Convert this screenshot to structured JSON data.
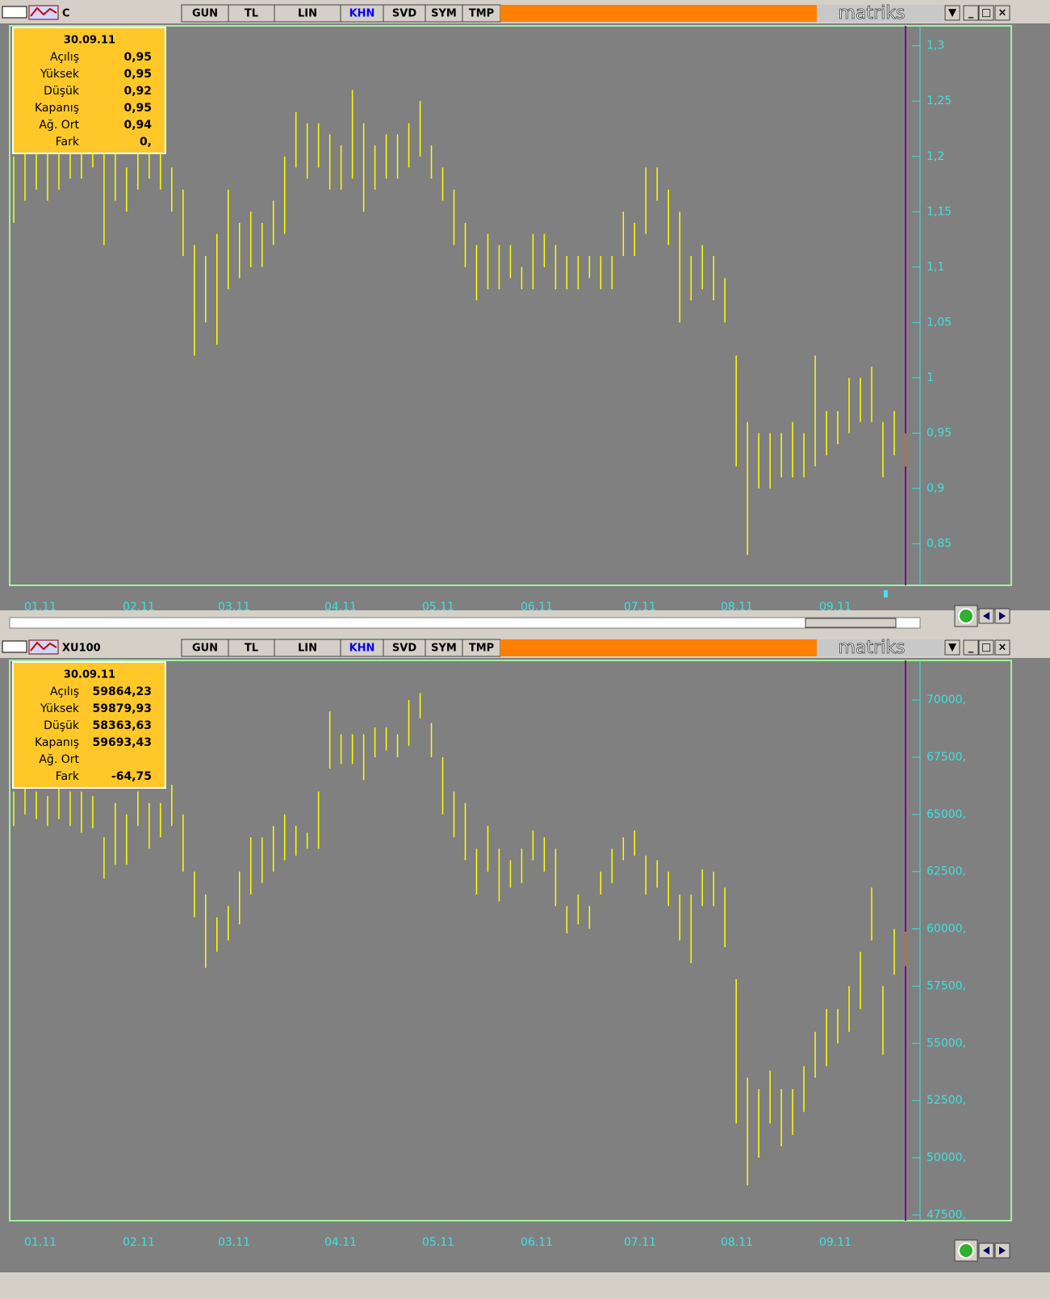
{
  "panels": [
    {
      "symbol": "C",
      "buttons": [
        "GUN",
        "TL",
        "LIN",
        "KHN",
        "SVD",
        "SYM",
        "TMP"
      ],
      "active_button": 3,
      "logo": "matriks",
      "info": {
        "date": "30.09.11",
        "rows": [
          {
            "label": "Açılış",
            "value": "0,95"
          },
          {
            "label": "Yüksek",
            "value": "0,95"
          },
          {
            "label": "Düşük",
            "value": "0,92"
          },
          {
            "label": "Kapanış",
            "value": "0,95"
          },
          {
            "label": "Ağ. Ort",
            "value": "0,94"
          },
          {
            "label": "Fark",
            "value": "0,"
          }
        ]
      },
      "chart": {
        "type": "ohlc",
        "color": "#ffff00",
        "last_color": "#ff8000",
        "ylim": [
          0.8125,
          1.318
        ],
        "yticks": [
          {
            "value": 1.3,
            "label": "1,3"
          },
          {
            "value": 1.25,
            "label": "1,25"
          },
          {
            "value": 1.2,
            "label": "1,2"
          },
          {
            "value": 1.15,
            "label": "1,15"
          },
          {
            "value": 1.1,
            "label": "1,1"
          },
          {
            "value": 1.05,
            "label": "1,05"
          },
          1,
          {
            "value": 0.95,
            "label": "0,95"
          },
          {
            "value": 0.9,
            "label": "0,9"
          },
          {
            "value": 0.85,
            "label": "0,85"
          }
        ],
        "x_labels": [
          "01.11",
          "02.11",
          "03.11",
          "04.11",
          "05.11",
          "06.11",
          "07.11",
          "08.11",
          "09.11"
        ],
        "high": [
          1.2,
          1.21,
          1.22,
          1.21,
          1.22,
          1.21,
          1.22,
          1.23,
          1.22,
          1.21,
          1.19,
          1.22,
          1.21,
          1.22,
          1.19,
          1.17,
          1.12,
          1.11,
          1.13,
          1.17,
          1.14,
          1.15,
          1.14,
          1.16,
          1.2,
          1.24,
          1.23,
          1.23,
          1.22,
          1.21,
          1.26,
          1.23,
          1.21,
          1.22,
          1.22,
          1.23,
          1.25,
          1.21,
          1.19,
          1.17,
          1.14,
          1.12,
          1.13,
          1.12,
          1.12,
          1.1,
          1.13,
          1.13,
          1.12,
          1.11,
          1.11,
          1.11,
          1.11,
          1.11,
          1.15,
          1.14,
          1.19,
          1.19,
          1.17,
          1.15,
          1.11,
          1.12,
          1.11,
          1.09,
          1.02,
          0.96,
          0.95,
          0.95,
          0.95,
          0.96,
          0.95,
          1.02,
          0.97,
          0.97,
          1.0,
          1.0,
          1.01,
          0.96,
          0.97,
          0.95
        ],
        "low": [
          1.14,
          1.16,
          1.17,
          1.16,
          1.17,
          1.18,
          1.18,
          1.19,
          1.12,
          1.16,
          1.15,
          1.17,
          1.18,
          1.17,
          1.15,
          1.11,
          1.02,
          1.05,
          1.03,
          1.08,
          1.09,
          1.1,
          1.1,
          1.12,
          1.13,
          1.19,
          1.18,
          1.19,
          1.17,
          1.17,
          1.18,
          1.15,
          1.17,
          1.18,
          1.18,
          1.19,
          1.2,
          1.18,
          1.16,
          1.12,
          1.1,
          1.07,
          1.08,
          1.08,
          1.09,
          1.08,
          1.08,
          1.1,
          1.08,
          1.08,
          1.08,
          1.09,
          1.08,
          1.08,
          1.11,
          1.11,
          1.13,
          1.16,
          1.12,
          1.05,
          1.07,
          1.08,
          1.07,
          1.05,
          0.92,
          0.84,
          0.9,
          0.9,
          0.91,
          0.91,
          0.91,
          0.92,
          0.93,
          0.94,
          0.95,
          0.96,
          0.96,
          0.91,
          0.93,
          0.92
        ]
      }
    },
    {
      "symbol": "XU100",
      "buttons": [
        "GUN",
        "TL",
        "LIN",
        "KHN",
        "SVD",
        "SYM",
        "TMP"
      ],
      "active_button": 3,
      "logo": "matriks",
      "info": {
        "date": "30.09.11",
        "rows": [
          {
            "label": "Açılış",
            "value": "59864,23"
          },
          {
            "label": "Yüksek",
            "value": "59879,93"
          },
          {
            "label": "Düşük",
            "value": "58363,63"
          },
          {
            "label": "Kapanış",
            "value": "59693,43"
          },
          {
            "label": "Ağ. Ort"
          },
          {
            "label": "Fark",
            "value": "-64,75"
          }
        ]
      },
      "chart": {
        "type": "ohlc",
        "color": "#ffff00",
        "last_color": "#ff8000",
        "ylim": [
          47250,
          71730
        ],
        "yticks": [
          {
            "value": 70000,
            "label": "70000,"
          },
          {
            "value": 67500,
            "label": "67500,"
          },
          {
            "value": 65000,
            "label": "65000,"
          },
          {
            "value": 62500,
            "label": "62500,"
          },
          {
            "value": 60000,
            "label": "60000,"
          },
          {
            "value": 57500,
            "label": "57500,"
          },
          {
            "value": 55000,
            "label": "55000,"
          },
          {
            "value": 52500,
            "label": "52500,"
          },
          {
            "value": 50000,
            "label": "50000,"
          },
          {
            "value": 47500,
            "label": "47500,"
          }
        ],
        "x_labels": [
          "01.11",
          "02.11",
          "03.11",
          "04.11",
          "05.11",
          "06.11",
          "07.11",
          "08.11",
          "09.11"
        ],
        "high": [
          66000,
          66500,
          66000,
          65800,
          66200,
          66000,
          66000,
          65800,
          64000,
          65500,
          65000,
          66000,
          65500,
          65500,
          66300,
          65000,
          62500,
          61500,
          60500,
          61000,
          62500,
          64000,
          64000,
          64500,
          65000,
          64500,
          64200,
          66000,
          69500,
          68500,
          68500,
          68500,
          68800,
          68800,
          68500,
          70000,
          70300,
          69000,
          67500,
          66000,
          65500,
          63500,
          64500,
          63500,
          63000,
          63500,
          64300,
          64000,
          63500,
          61000,
          61500,
          61000,
          62500,
          63500,
          64000,
          64300,
          63200,
          63000,
          62500,
          61500,
          61500,
          62600,
          62500,
          61800,
          57800,
          53500,
          53000,
          53800,
          53000,
          53000,
          54000,
          55500,
          56500,
          56500,
          57500,
          59000,
          61800,
          57500,
          60000,
          59880
        ],
        "low": [
          64500,
          65000,
          64800,
          64500,
          64800,
          64500,
          64200,
          64400,
          62200,
          62800,
          62800,
          64500,
          63500,
          64000,
          64500,
          62500,
          60500,
          58300,
          59000,
          59500,
          60200,
          61500,
          62000,
          62500,
          63000,
          63200,
          63500,
          63500,
          67000,
          67200,
          67200,
          66500,
          67500,
          67800,
          67500,
          68000,
          69200,
          67500,
          65000,
          64000,
          63000,
          61500,
          62500,
          61200,
          61800,
          62000,
          63000,
          62500,
          61000,
          59800,
          60200,
          60000,
          61500,
          62000,
          63000,
          63200,
          61500,
          61800,
          61000,
          59500,
          58500,
          61000,
          61000,
          59200,
          51500,
          48800,
          50000,
          51500,
          50500,
          51000,
          52000,
          53500,
          54000,
          55000,
          55500,
          56500,
          59500,
          54500,
          58000,
          58364
        ]
      }
    }
  ]
}
